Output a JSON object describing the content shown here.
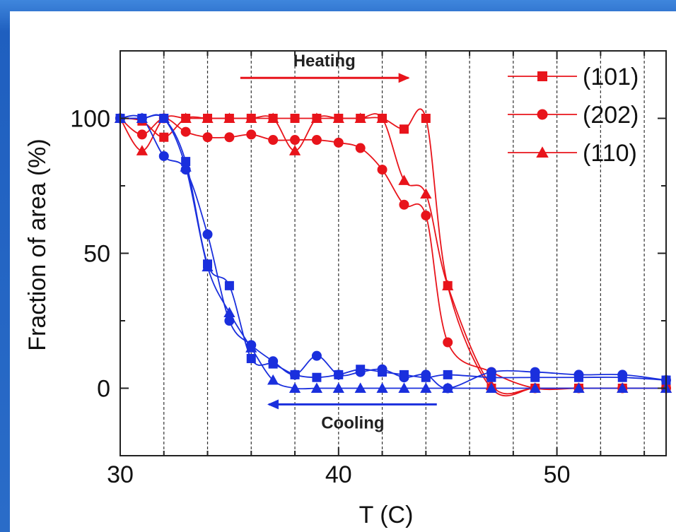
{
  "chart_data": {
    "type": "line",
    "title": "",
    "xlabel": "T (C)",
    "ylabel": "Fraction of area (%)",
    "xlim": [
      30,
      55
    ],
    "ylim": [
      -25,
      125
    ],
    "xticks": [
      30,
      40,
      50
    ],
    "yticks": [
      0,
      50,
      100
    ],
    "xtick_labels": [
      "30",
      "40",
      "50"
    ],
    "ytick_labels": [
      "0",
      "50",
      "100"
    ],
    "grid": "vertical dashed lines at every 2 C",
    "colors": {
      "heating": "#e8141b",
      "cooling": "#1a2fdd"
    },
    "legend": {
      "position": "top-right",
      "entries": [
        {
          "label": "(101)",
          "marker": "square"
        },
        {
          "label": "(202)",
          "marker": "circle"
        },
        {
          "label": "(110)",
          "marker": "triangle"
        }
      ]
    },
    "annotations": [
      {
        "text": "Heating",
        "arrow": "right",
        "x_from": 35.5,
        "x_to": 43.2,
        "y": 115
      },
      {
        "text": "Cooling",
        "arrow": "left",
        "x_from": 44.5,
        "x_to": 36.8,
        "y": -6
      }
    ],
    "series": [
      {
        "group": "heating",
        "plane": "(101)",
        "marker": "square",
        "x": [
          30,
          31,
          32,
          33,
          34,
          35,
          36,
          37,
          38,
          39,
          40,
          41,
          42,
          43,
          44,
          45,
          47,
          49,
          51,
          53,
          55
        ],
        "y": [
          100,
          99,
          93,
          100,
          100,
          100,
          100,
          100,
          100,
          100,
          100,
          100,
          100,
          96,
          100,
          38,
          0,
          0,
          0,
          0,
          0
        ]
      },
      {
        "group": "heating",
        "plane": "(202)",
        "marker": "circle",
        "x": [
          30,
          31,
          32,
          33,
          34,
          35,
          36,
          37,
          38,
          39,
          40,
          41,
          42,
          43,
          44,
          45,
          47,
          49,
          51,
          53,
          55
        ],
        "y": [
          100,
          94,
          100,
          95,
          93,
          93,
          94,
          92,
          92,
          92,
          91,
          89,
          81,
          68,
          64,
          17,
          6,
          0,
          0,
          0,
          0
        ]
      },
      {
        "group": "heating",
        "plane": "(110)",
        "marker": "triangle",
        "x": [
          30,
          31,
          32,
          33,
          34,
          35,
          36,
          37,
          38,
          39,
          40,
          41,
          42,
          43,
          44,
          45,
          47,
          49,
          51,
          53,
          55
        ],
        "y": [
          100,
          88,
          100,
          100,
          100,
          100,
          100,
          100,
          88,
          100,
          100,
          100,
          100,
          77,
          72,
          38,
          1,
          0,
          0,
          0,
          0
        ]
      },
      {
        "group": "cooling",
        "plane": "(101)",
        "marker": "square",
        "x": [
          30,
          31,
          32,
          33,
          34,
          35,
          36,
          37,
          38,
          39,
          40,
          41,
          42,
          43,
          44,
          45,
          47,
          49,
          51,
          53,
          55
        ],
        "y": [
          100,
          100,
          100,
          84,
          46,
          38,
          11,
          9,
          5,
          4,
          5,
          7,
          6,
          5,
          4,
          5,
          4,
          4,
          4,
          4,
          3
        ]
      },
      {
        "group": "cooling",
        "plane": "(202)",
        "marker": "circle",
        "x": [
          30,
          31,
          32,
          33,
          34,
          35,
          36,
          37,
          38,
          39,
          40,
          41,
          42,
          43,
          44,
          45,
          47,
          49,
          51,
          53,
          55
        ],
        "y": [
          100,
          100,
          86,
          81,
          57,
          25,
          16,
          10,
          5,
          12,
          5,
          6,
          7,
          4,
          5,
          0,
          6,
          6,
          5,
          5,
          3
        ]
      },
      {
        "group": "cooling",
        "plane": "(110)",
        "marker": "triangle",
        "x": [
          30,
          31,
          32,
          33,
          34,
          35,
          36,
          37,
          38,
          39,
          40,
          41,
          42,
          43,
          44,
          45,
          47,
          49,
          51,
          53,
          55
        ],
        "y": [
          100,
          100,
          100,
          82,
          45,
          28,
          15,
          3,
          0,
          0,
          0,
          0,
          0,
          0,
          0,
          0,
          0,
          0,
          0,
          0,
          0
        ]
      }
    ]
  }
}
